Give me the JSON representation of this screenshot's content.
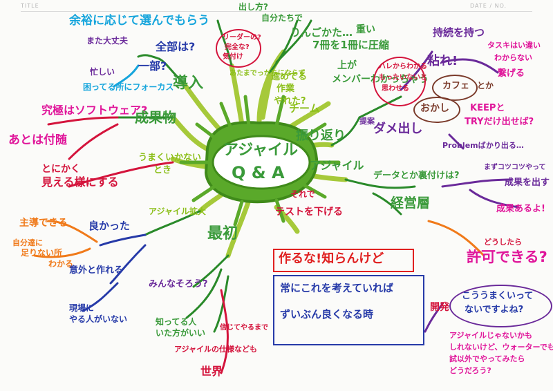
{
  "header": {
    "title_label": "TITLE",
    "date_label": "DATE / NO."
  },
  "colors": {
    "center": "#55a623",
    "branch_lime": "#a6c93a"
  },
  "center": {
    "line1": "アジャイル",
    "line2": "Q & A"
  },
  "nodes": {
    "yoyuu": "余裕に応じて選んでもらう",
    "mata_daijoubu": "また大丈夫",
    "isogashii": "忙しい",
    "ichibu": "一部?",
    "zenbu": "全部は?",
    "komatteru": "困ってる所にフォーカス",
    "dounyuu": "導入",
    "kyuukyoku": "究極はソフトウェア?",
    "seikabutsu": "成果物",
    "atohadakedo": "あとは付随",
    "tonikaku_line1": "とにかく",
    "tonikaku_line2": "見える様にする",
    "umaku_line1": "うまくいかない",
    "umaku_line2": "とき",
    "shudou": "主導できる",
    "jibun_line1": "自分達に",
    "jibun_line2": "足りない所",
    "jibun_line3": "わかる",
    "yokatta": "良かった",
    "igaini": "意外と作れる",
    "agile_kakudai": "アジャイル拡大",
    "saisho": "最初",
    "genba_line1": "現場に",
    "genba_line2": "やる人がいない",
    "minna": "みんなそろう?",
    "shitteru_line1": "知ってる人",
    "shitteru_line2": "いた方がいい",
    "agile_shiyou": "アジャイルの仕様なども",
    "sekai": "世界",
    "shinjiru": "信じてやるまで",
    "dashikata": "出し方?",
    "riyuu": "リーダーの?",
    "kanzen": "完全な?",
    "kisetsu": "気付け",
    "atama": "あたまでっかちにならず",
    "shiyou_line1": "進めてる",
    "shiyou_line2": "作業",
    "shiyou_line3": "やれた?",
    "jibun_de": "自分たちで",
    "ringo": "りんごかた…",
    "sasshi": "7冊を1冊に圧縮",
    "omoi": "重い",
    "kotae": "答え",
    "team": "チーム",
    "furikaeri": "振り返り",
    "teian": "提案",
    "dameshi": "ダメ出し",
    "kare": "上が",
    "wakaranai": "メンバーわかっちゃう",
    "wakaru_line1": "ハレからわかる",
    "wakaru_line2": "もったいないと",
    "wakaru_line3": "思わせる",
    "mokuhyou": "持続を持つ",
    "neba": "粘れ!",
    "tasuke_line1": "タスキはい違い",
    "tasuke_line2": "わからない",
    "tasuke_line3": "繋げる",
    "cafe": "カフェ",
    "toka": "とか",
    "okashi": "おかし",
    "keep_line1": "KEEPと",
    "keep_line2": "TRYだけ出せば?",
    "problem": "Problemばかり出る…",
    "agile_branch": "アジャイル",
    "data": "データとか裏付けは?",
    "mazu_line1": "まずコツコツやって",
    "mazu_line2": "成果を出す",
    "seika_aru": "成果あるよ!",
    "keieisou": "経営層",
    "doushitara": "どうしたら",
    "kyoka": "許可できる?",
    "sorede": "それで",
    "test_down": "テストを下げる",
    "tsukuru": "作るな!知らんけど",
    "tsune_line1": "常にこれを考えていれば",
    "tsune_line2": "ずいぶん良くなる時",
    "kou_line1": "こううまくいって",
    "kou_line2": "ないですよね?",
    "kaihatsu": "開発",
    "agile_ja_line1": "アジャイルじゃないかも",
    "agile_ja_line2": "しれないけど、ウォーターでも",
    "agile_ja_line3": "試以外でやってみたら",
    "agile_ja_line4": "どうだろう?"
  }
}
